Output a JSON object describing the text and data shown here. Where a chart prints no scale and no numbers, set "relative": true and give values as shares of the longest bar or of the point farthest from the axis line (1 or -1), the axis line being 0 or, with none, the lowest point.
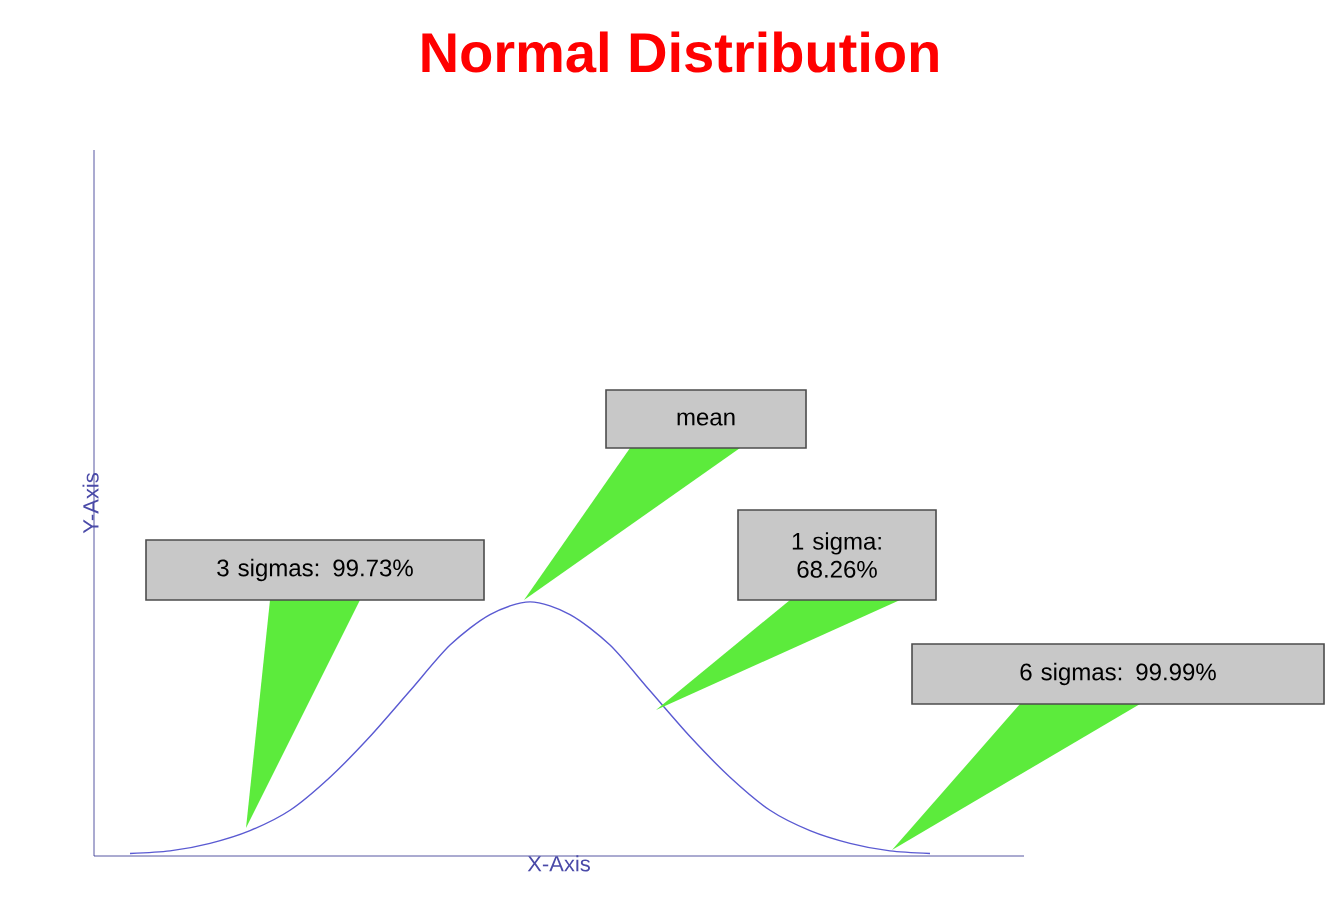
{
  "chart_data": {
    "type": "line",
    "title": "Normal Distribution",
    "xlabel": "X-Axis",
    "ylabel": "Y-Axis",
    "relative": true,
    "tick_labels": false,
    "marker": "none",
    "color": "#5a5ad2",
    "categories": [
      null,
      null,
      null,
      null,
      null,
      null,
      null,
      null,
      null,
      null,
      null,
      null,
      null,
      null,
      null,
      null,
      null,
      null,
      null,
      null,
      null
    ],
    "values": [
      0.01,
      0.02,
      0.05,
      0.1,
      0.18,
      0.31,
      0.47,
      0.65,
      0.83,
      0.95,
      1,
      0.95,
      0.83,
      0.65,
      0.47,
      0.31,
      0.18,
      0.1,
      0.05,
      0.02,
      0.01
    ],
    "annotations": [
      "mean",
      "3 sigmas: 99.73%",
      "1 sigma: 68.26%",
      "6 sigmas: 99.99%"
    ]
  }
}
